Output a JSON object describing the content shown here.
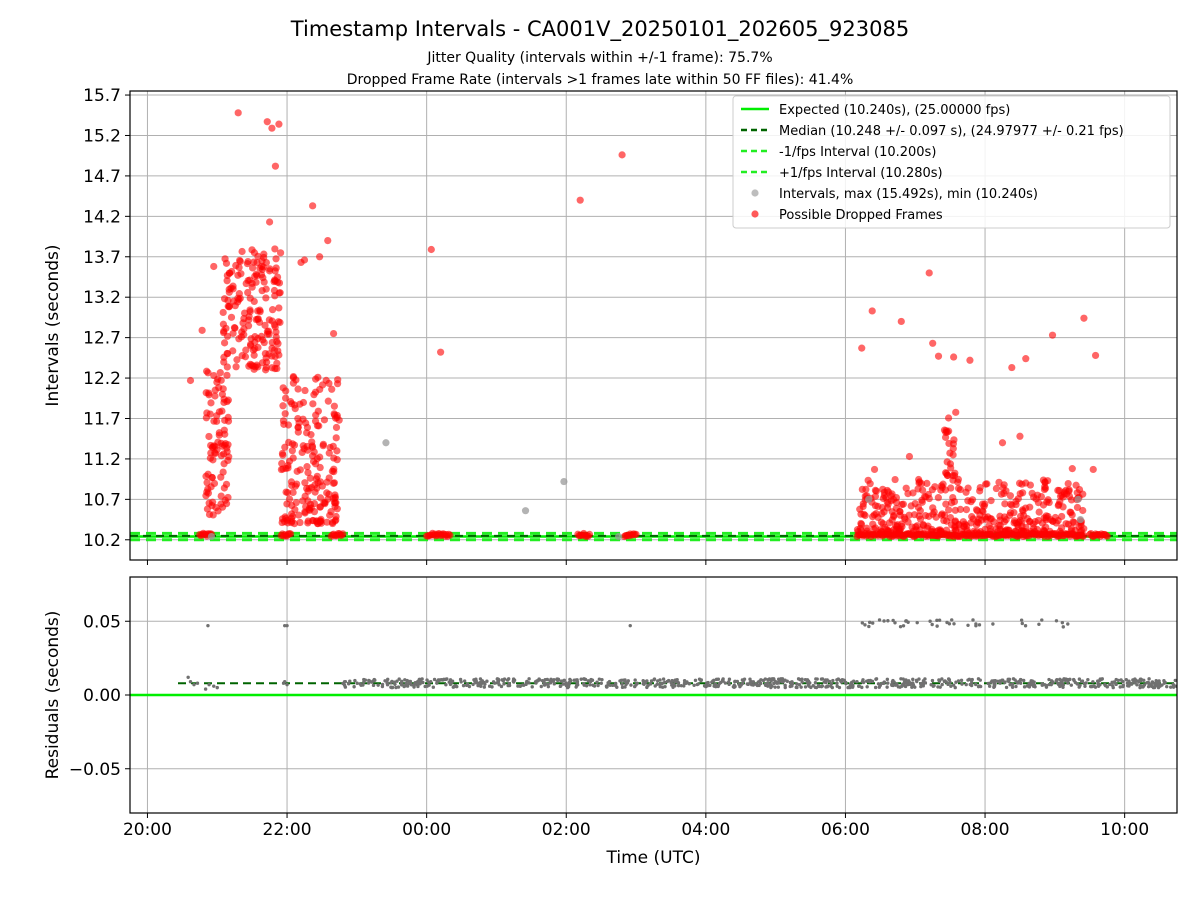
{
  "title": "Timestamp Intervals - CA001V_20250101_202605_923085",
  "subtitle1": "Jitter Quality (intervals within +/-1 frame): 75.7%",
  "subtitle2": "Dropped Frame Rate (intervals >1 frames late within 50 FF files): 41.4%",
  "colors": {
    "expected": "#00ee00",
    "median": "#006400",
    "interval_bounds": "#22ee22",
    "normal_points": "#999999",
    "dropped_points": "#ff0000",
    "residual_points": "#707070",
    "grid": "#b0b0b0"
  },
  "chart_data": [
    {
      "type": "scatter",
      "ylabel": "Intervals (seconds)",
      "xlabel": "",
      "x_unit": "hours (UTC, continuing past midnight)",
      "xlim": [
        "19:45",
        "10:45"
      ],
      "ylim": [
        9.95,
        15.75
      ],
      "y_ticks": [
        "10.2",
        "10.7",
        "11.2",
        "11.7",
        "12.2",
        "12.7",
        "13.2",
        "13.7",
        "14.2",
        "14.7",
        "15.2",
        "15.7"
      ],
      "x_ticks": [
        "20:00",
        "22:00",
        "00:00",
        "02:00",
        "04:00",
        "06:00",
        "08:00",
        "10:00"
      ],
      "grid": true,
      "legend_position": "top-right",
      "legend": [
        "Expected (10.240s), (25.00000 fps)",
        "Median (10.248 +/- 0.097 s), (24.97977 +/- 0.21 fps)",
        "-1/fps Interval (10.200s)",
        "+1/fps Interval (10.280s)",
        "Intervals, max (15.492s), min (10.240s)",
        "Possible Dropped Frames"
      ],
      "lines": {
        "expected": 10.24,
        "median": 10.248,
        "minus_one_fps": 10.2,
        "plus_one_fps": 10.28
      },
      "series_points": {
        "intervals": [
          [
            "23:25",
            11.4
          ],
          [
            "01:25",
            10.56
          ],
          [
            "01:58",
            10.92
          ],
          [
            "09:20",
            10.7
          ],
          [
            "09:22",
            10.45
          ],
          [
            "06:20",
            10.7
          ],
          [
            "20:55",
            10.24
          ],
          [
            "02:45",
            10.24
          ]
        ],
        "dropped_isolated": [
          [
            "21:18",
            15.48
          ],
          [
            "21:43",
            15.37
          ],
          [
            "21:47",
            15.29
          ],
          [
            "21:53",
            15.34
          ],
          [
            "21:50",
            14.82
          ],
          [
            "21:45",
            14.13
          ],
          [
            "22:22",
            14.33
          ],
          [
            "22:35",
            13.9
          ],
          [
            "22:28",
            13.7
          ],
          [
            "22:12",
            13.63
          ],
          [
            "22:15",
            13.66
          ],
          [
            "22:40",
            12.75
          ],
          [
            "20:37",
            12.17
          ],
          [
            "20:47",
            12.79
          ],
          [
            "20:57",
            13.58
          ],
          [
            "00:04",
            13.79
          ],
          [
            "00:12",
            12.52
          ],
          [
            "02:12",
            14.4
          ],
          [
            "02:48",
            14.96
          ],
          [
            "06:14",
            12.57
          ],
          [
            "06:23",
            13.03
          ],
          [
            "06:48",
            12.9
          ],
          [
            "07:12",
            13.5
          ],
          [
            "07:15",
            12.63
          ],
          [
            "07:20",
            12.47
          ],
          [
            "07:33",
            12.46
          ],
          [
            "07:47",
            12.42
          ],
          [
            "08:23",
            12.33
          ],
          [
            "08:35",
            12.44
          ],
          [
            "08:58",
            12.73
          ],
          [
            "09:25",
            12.94
          ],
          [
            "09:35",
            12.48
          ],
          [
            "09:33",
            11.07
          ],
          [
            "09:15",
            11.08
          ],
          [
            "06:25",
            11.07
          ],
          [
            "06:55",
            11.23
          ],
          [
            "08:15",
            11.4
          ],
          [
            "08:30",
            11.48
          ]
        ],
        "dropped_clusters": [
          {
            "x_range": [
              "20:50",
              "21:10"
            ],
            "y_range": [
              10.5,
              12.3
            ],
            "count": 90
          },
          {
            "x_range": [
              "21:05",
              "21:55"
            ],
            "y_range": [
              12.3,
              13.8
            ],
            "count": 180
          },
          {
            "x_range": [
              "21:55",
              "22:45"
            ],
            "y_range": [
              10.4,
              12.3
            ],
            "count": 200
          },
          {
            "x_range": [
              "06:10",
              "09:25"
            ],
            "y_range": [
              10.3,
              10.95
            ],
            "count": 380
          },
          {
            "x_range": [
              "07:25",
              "07:35"
            ],
            "y_range": [
              10.9,
              11.95
            ],
            "count": 25
          }
        ],
        "dropped_baseline": [
          [
            "20:45",
            "20:55"
          ],
          [
            "21:55",
            "22:03"
          ],
          [
            "22:38",
            "22:48"
          ],
          [
            "00:00",
            "00:20"
          ],
          [
            "02:10",
            "02:20"
          ],
          [
            "02:50",
            "03:00"
          ],
          [
            "06:10",
            "09:25"
          ],
          [
            "09:30",
            "09:45"
          ]
        ]
      }
    },
    {
      "type": "scatter",
      "ylabel": "Residuals (seconds)",
      "xlabel": "Time (UTC)",
      "xlim": [
        "19:45",
        "10:45"
      ],
      "ylim": [
        -0.08,
        0.08
      ],
      "y_ticks": [
        "0.05",
        "0.00",
        "−0.05"
      ],
      "x_ticks": [
        "20:00",
        "22:00",
        "00:00",
        "02:00",
        "04:00",
        "06:00",
        "08:00",
        "10:00"
      ],
      "grid": true,
      "lines": {
        "zero": 0.0,
        "median_residual": 0.008
      },
      "series_points": {
        "band": {
          "x_range": [
            "22:48",
            "10:45"
          ],
          "y_range": [
            0.005,
            0.011
          ],
          "count": 800
        },
        "early": [
          [
            "20:35",
            0.012
          ],
          [
            "20:37",
            0.009
          ],
          [
            "20:40",
            0.007
          ],
          [
            "20:43",
            0.008
          ],
          [
            "20:50",
            0.004
          ],
          [
            "20:53",
            0.007
          ],
          [
            "20:57",
            0.006
          ],
          [
            "21:00",
            0.005
          ],
          [
            "21:57",
            0.008
          ],
          [
            "22:00",
            0.007
          ],
          [
            "21:58",
            0.009
          ]
        ],
        "high": [
          [
            "20:52",
            0.047
          ],
          [
            "21:58",
            0.047
          ],
          [
            "22:00",
            0.047
          ],
          [
            "02:55",
            0.047
          ]
        ],
        "high_cluster": {
          "x_range": [
            "06:12",
            "09:20"
          ],
          "y_range": [
            0.046,
            0.051
          ],
          "count": 40
        }
      }
    }
  ]
}
